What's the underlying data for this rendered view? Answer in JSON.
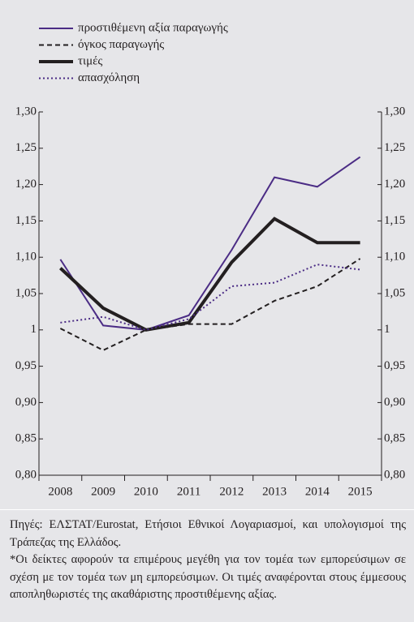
{
  "chart_data": {
    "type": "line",
    "categories": [
      "2008",
      "2009",
      "2010",
      "2011",
      "2012",
      "2013",
      "2014",
      "2015"
    ],
    "series": [
      {
        "name": "προστιθέμενη αξία παραγωγής",
        "color": "#4b2c85",
        "dash": "solid",
        "width": 2,
        "values": [
          1.097,
          1.006,
          1.0,
          1.02,
          1.11,
          1.21,
          1.197,
          1.238
        ]
      },
      {
        "name": "όγκος παραγωγής",
        "color": "#231f20",
        "dash": "dashed",
        "width": 2,
        "values": [
          1.002,
          0.972,
          1.0,
          1.008,
          1.008,
          1.04,
          1.06,
          1.098
        ]
      },
      {
        "name": "τιμές",
        "color": "#231f20",
        "dash": "solid",
        "width": 4,
        "values": [
          1.085,
          1.03,
          1.0,
          1.01,
          1.093,
          1.153,
          1.12,
          1.12
        ]
      },
      {
        "name": "απασχόληση",
        "color": "#4b2c85",
        "dash": "dotted",
        "width": 2,
        "values": [
          1.01,
          1.018,
          1.0,
          1.015,
          1.06,
          1.065,
          1.09,
          1.083
        ]
      }
    ],
    "ylim": [
      0.8,
      1.3
    ],
    "yticks": [
      {
        "value": 0.8,
        "label": "0,80"
      },
      {
        "value": 0.85,
        "label": "0,85"
      },
      {
        "value": 0.9,
        "label": "0,90"
      },
      {
        "value": 0.95,
        "label": "0,95"
      },
      1,
      {
        "value": 1.05,
        "label": "1,05"
      },
      {
        "value": 1.1,
        "label": "1,10"
      },
      {
        "value": 1.15,
        "label": "1,15"
      },
      {
        "value": 1.2,
        "label": "1,20"
      },
      {
        "value": 1.25,
        "label": "1,25"
      },
      {
        "value": 1.3,
        "label": "1,30"
      }
    ],
    "y2lim": [
      0.8,
      1.3
    ],
    "y2ticks": [
      {
        "value": 0.8,
        "label": "0,80"
      },
      {
        "value": 0.85,
        "label": "0,85"
      },
      {
        "value": 0.9,
        "label": "0,90"
      },
      {
        "value": 0.95,
        "label": "0,95"
      },
      1,
      {
        "value": 1.05,
        "label": "1,05"
      },
      {
        "value": 1.1,
        "label": "1,10"
      },
      {
        "value": 1.15,
        "label": "1,15"
      },
      {
        "value": 1.2,
        "label": "1,20"
      },
      {
        "value": 1.25,
        "label": "1,25"
      },
      {
        "value": 1.3,
        "label": "1,30"
      }
    ],
    "notes": [
      "Πηγές: ΕΛΣΤΑΤ/Eurostat, Ετήσιοι Εθνικοί Λογαριασμοί, και υπολογισμοί της Τράπεζας της Ελλάδος.",
      "*Οι δείκτες αφορούν τα επιμέρους μεγέθη για τον τομέα των εμπορεύσιμων σε σχέση με τον τομέα των μη εμπορεύσιμων. Οι τιμές αναφέρονται στους έμμεσους αποπληθωριστές της ακαθάριστης προστιθέμενης αξίας."
    ]
  }
}
